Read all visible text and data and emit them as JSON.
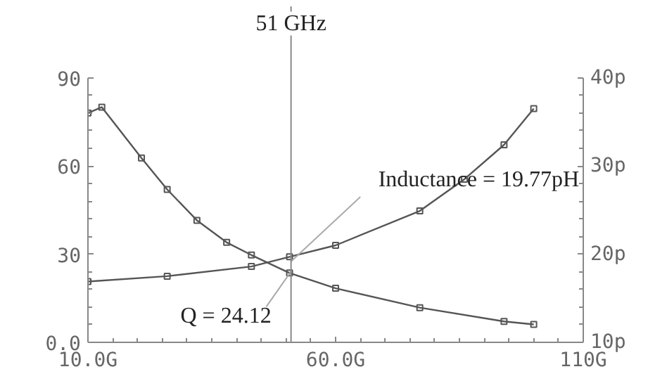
{
  "chart_data": {
    "type": "line",
    "xlim": [
      10,
      110
    ],
    "xticks": [
      {
        "value": 10,
        "label": "10.0G"
      },
      {
        "value": 60,
        "label": "60.0G"
      },
      {
        "value": 110,
        "label": "110G"
      }
    ],
    "ylim": [
      0,
      90
    ],
    "yticks": [
      {
        "value": 0,
        "label": "0.0"
      },
      30,
      60,
      90
    ],
    "y2lim": [
      10,
      40
    ],
    "y2ticks": [
      {
        "value": 10,
        "label": "10p"
      },
      {
        "value": 20,
        "label": "20p"
      },
      {
        "value": 30,
        "label": "30p"
      },
      {
        "value": 40,
        "label": "40p"
      }
    ],
    "series": [
      {
        "color": "#555555",
        "x": [
          10,
          12.8,
          20.8,
          26,
          32,
          38,
          43,
          50.7,
          60,
          77,
          94,
          100
        ],
        "values": [
          78,
          80,
          62.7,
          52,
          41.5,
          34,
          29.7,
          23.6,
          18.4,
          11.8,
          7.1,
          6.1
        ]
      },
      {
        "color": "#555555",
        "axis": "y2",
        "x": [
          10,
          26,
          43,
          50.7,
          60,
          77,
          86,
          94,
          100
        ],
        "values": [
          16.9,
          17.5,
          18.6,
          19.7,
          21.0,
          24.9,
          28.5,
          32.4,
          36.5
        ]
      }
    ],
    "ref_lines": [
      {
        "axis": "x",
        "value": 51,
        "label": "51 GHz",
        "color": "#888888"
      }
    ],
    "annotations": [
      {
        "text": "Q = 24.12",
        "x": 51,
        "y": 24.12
      },
      {
        "text": "Inductance = 19.77pH",
        "x": 51,
        "y": 27.5
      }
    ],
    "marker": "square",
    "grid": false
  }
}
